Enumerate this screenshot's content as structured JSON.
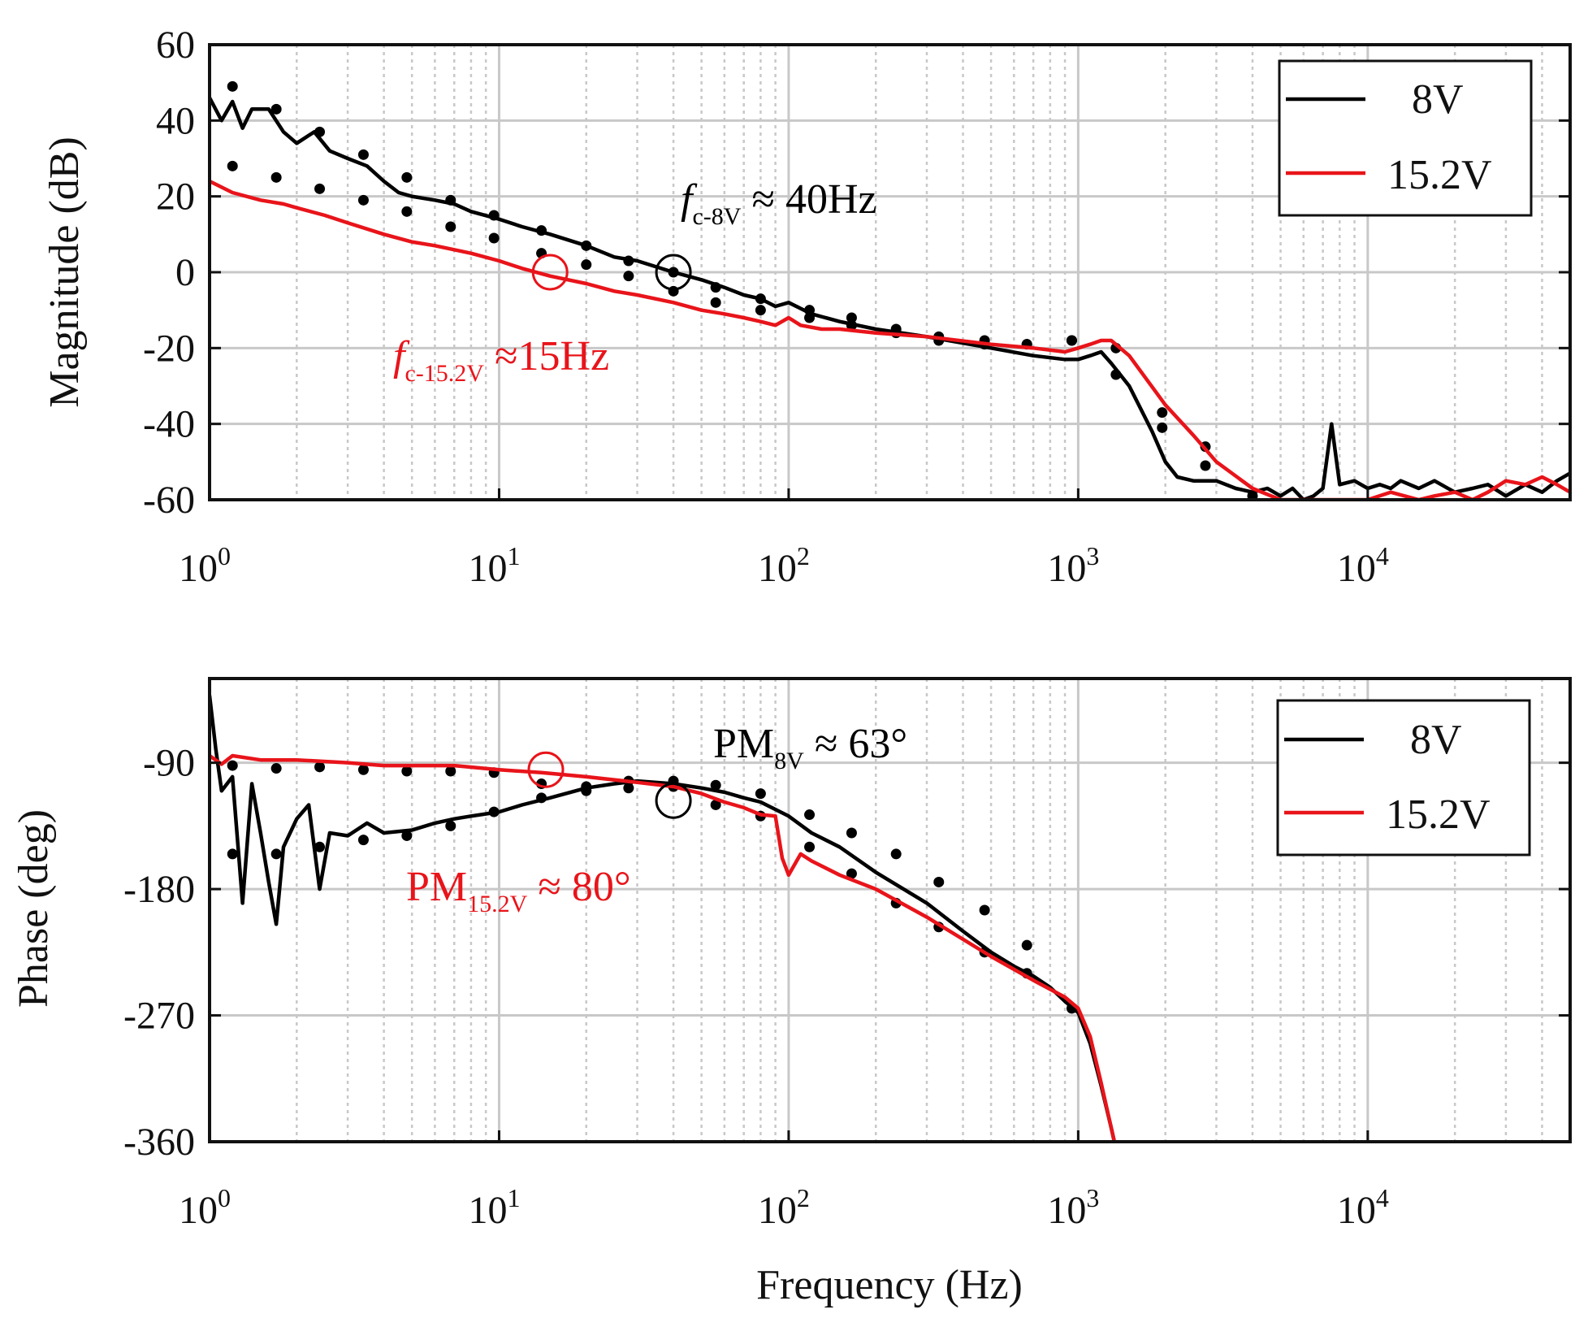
{
  "colors": {
    "v8": "#000000",
    "v15": "#e8141a",
    "grid": "#c8c8c8"
  },
  "chart_data": [
    {
      "type": "line",
      "xscale": "log",
      "xlim": [
        1,
        50000
      ],
      "ylim": [
        -60,
        60
      ],
      "ylabel": "Magnitude (dB)",
      "xlabel": "",
      "yticks": [
        "60",
        "40",
        "20",
        "0",
        "-20",
        "-40",
        "-60"
      ],
      "ytick_values": [
        60,
        40,
        20,
        0,
        -20,
        -40,
        -60
      ],
      "xticks": [
        {
          "value": 1,
          "base": "10",
          "exp": "0"
        },
        {
          "value": 10,
          "base": "10",
          "exp": "1"
        },
        {
          "value": 100,
          "base": "10",
          "exp": "2"
        },
        {
          "value": 1000,
          "base": "10",
          "exp": "3"
        },
        {
          "value": 10000,
          "base": "10",
          "exp": "4"
        }
      ],
      "legend": {
        "placement": "top-right",
        "entries": [
          "8V",
          "15.2V"
        ]
      },
      "series": [
        {
          "name": "8V",
          "color": "#000000",
          "x": [
            1,
            1.1,
            1.2,
            1.3,
            1.4,
            1.6,
            1.8,
            2,
            2.3,
            2.6,
            3,
            3.5,
            4,
            4.5,
            5,
            6,
            7,
            8,
            10,
            12,
            15,
            20,
            25,
            30,
            40,
            50,
            60,
            70,
            80,
            90,
            100,
            120,
            150,
            200,
            300,
            500,
            700,
            900,
            1000,
            1100,
            1200,
            1300,
            1500,
            1800,
            2000,
            2200,
            2500,
            3000,
            3500,
            4000,
            4500,
            5000,
            5500,
            6000,
            6500,
            7000,
            7500,
            8000,
            9000,
            10000,
            11000,
            12000,
            13000,
            15000,
            17000,
            20000,
            23000,
            26000,
            30000,
            35000,
            40000,
            45000,
            50000
          ],
          "y": [
            46,
            40,
            45,
            38,
            43,
            43,
            37,
            34,
            37,
            32,
            30,
            28,
            24,
            21,
            20,
            19,
            18,
            16,
            14,
            12,
            10,
            7,
            4,
            3,
            0,
            -2,
            -4,
            -6,
            -7,
            -9,
            -8,
            -11,
            -13,
            -15,
            -17,
            -20,
            -22,
            -23,
            -23,
            -22,
            -21,
            -24,
            -30,
            -42,
            -50,
            -54,
            -55,
            -55,
            -57,
            -58,
            -57,
            -59,
            -57,
            -60,
            -59,
            -57,
            -40,
            -56,
            -55,
            -57,
            -56,
            -57,
            -55,
            -57,
            -55,
            -58,
            -57,
            -56,
            -59,
            -56,
            -58,
            -55,
            -53
          ]
        },
        {
          "name": "15.2V",
          "color": "#e8141a",
          "x": [
            1,
            1.2,
            1.5,
            1.8,
            2,
            2.5,
            3,
            4,
            5,
            6,
            8,
            10,
            12,
            15,
            20,
            25,
            30,
            40,
            50,
            60,
            70,
            80,
            90,
            100,
            110,
            130,
            150,
            200,
            300,
            500,
            700,
            900,
            1000,
            1100,
            1200,
            1300,
            1500,
            2000,
            2500,
            3000,
            4000,
            5000,
            10000,
            12000,
            15000,
            17000,
            20000,
            23000,
            26000,
            30000,
            35000,
            40000,
            45000,
            50000
          ],
          "y": [
            24,
            21,
            19,
            18,
            17,
            15,
            13,
            10,
            8,
            7,
            5,
            3,
            1,
            -1,
            -3,
            -5,
            -6,
            -8,
            -10,
            -11,
            -12,
            -13,
            -14,
            -12,
            -14,
            -15,
            -15,
            -16,
            -17,
            -19,
            -20,
            -21,
            -20,
            -19,
            -18,
            -18,
            -22,
            -35,
            -43,
            -50,
            -57,
            -60,
            -60,
            -58,
            -60,
            -59,
            -58,
            -60,
            -58,
            -55,
            -56,
            -54,
            -56,
            -58
          ]
        },
        {
          "name": "8V markers",
          "style": "dots",
          "color": "#000000",
          "x": [
            1.2,
            1.7,
            2.4,
            3.4,
            4.8,
            6.8,
            9.6,
            14,
            20,
            28,
            40,
            56,
            80,
            118,
            165,
            235,
            330,
            475,
            665,
            950,
            1350,
            1950,
            2750
          ],
          "y": [
            49,
            43,
            37,
            31,
            25,
            19,
            15,
            11,
            7,
            3,
            0,
            -4,
            -7,
            -10,
            -12,
            -15,
            -17,
            -19,
            -19,
            -18,
            -27,
            -37,
            -46
          ]
        },
        {
          "name": "15.2V markers",
          "style": "dots",
          "color": "#000000",
          "x": [
            1.2,
            1.7,
            2.4,
            3.4,
            4.8,
            6.8,
            9.6,
            14,
            20,
            28,
            40,
            56,
            80,
            118,
            165,
            235,
            330,
            475,
            665,
            950,
            1350,
            1950,
            2750,
            4000
          ],
          "y": [
            28,
            25,
            22,
            19,
            16,
            12,
            9,
            5,
            2,
            -1,
            -5,
            -8,
            -10,
            -12,
            -14,
            -16,
            -18,
            -18,
            -19,
            -18,
            -20,
            -41,
            -51,
            -59
          ]
        }
      ],
      "annotations": [
        {
          "id": "fc8",
          "main": "f",
          "sub": "c-8V",
          "tail": " ≈ 40Hz",
          "color": "#000000",
          "marker_x": 40,
          "marker_y": 0
        },
        {
          "id": "fc15",
          "main": "f",
          "sub": "c-15.2V",
          "tail": " ≈15Hz",
          "color": "#e8141a",
          "marker_x": 15,
          "marker_y": 0
        }
      ]
    },
    {
      "type": "line",
      "xscale": "log",
      "xlim": [
        1,
        50000
      ],
      "ylim": [
        -360,
        -30
      ],
      "ylabel": "Phase (deg)",
      "xlabel": "Frequency (Hz)",
      "yticks": [
        "-90",
        "-180",
        "-270",
        "-360"
      ],
      "ytick_values": [
        -90,
        -180,
        -270,
        -360
      ],
      "xticks": [
        {
          "value": 1,
          "base": "10",
          "exp": "0"
        },
        {
          "value": 10,
          "base": "10",
          "exp": "1"
        },
        {
          "value": 100,
          "base": "10",
          "exp": "2"
        },
        {
          "value": 1000,
          "base": "10",
          "exp": "3"
        },
        {
          "value": 10000,
          "base": "10",
          "exp": "4"
        }
      ],
      "legend": {
        "placement": "top-right",
        "entries": [
          "8V",
          "15.2V"
        ]
      },
      "series": [
        {
          "name": "8V",
          "color": "#000000",
          "x": [
            1,
            1.05,
            1.1,
            1.2,
            1.3,
            1.4,
            1.5,
            1.6,
            1.7,
            1.8,
            2,
            2.2,
            2.4,
            2.6,
            3,
            3.5,
            4,
            5,
            6,
            7,
            8,
            10,
            12,
            15,
            20,
            25,
            30,
            40,
            50,
            60,
            70,
            80,
            100,
            120,
            150,
            200,
            300,
            400,
            500,
            600,
            700,
            800,
            900,
            1000,
            1100,
            1200,
            1300,
            1350
          ],
          "y": [
            -42,
            -80,
            -110,
            -100,
            -190,
            -105,
            -140,
            -175,
            -205,
            -150,
            -130,
            -120,
            -180,
            -140,
            -142,
            -133,
            -140,
            -138,
            -133,
            -130,
            -128,
            -125,
            -120,
            -115,
            -108,
            -105,
            -103,
            -105,
            -108,
            -111,
            -115,
            -118,
            -128,
            -140,
            -150,
            -168,
            -190,
            -210,
            -225,
            -235,
            -242,
            -250,
            -260,
            -268,
            -290,
            -320,
            -350,
            -365
          ]
        },
        {
          "name": "15.2V",
          "color": "#e8141a",
          "x": [
            1,
            1.1,
            1.2,
            1.5,
            2,
            3,
            4,
            5,
            7,
            10,
            14,
            20,
            30,
            40,
            50,
            60,
            70,
            80,
            90,
            95,
            100,
            110,
            120,
            150,
            200,
            300,
            500,
            700,
            900,
            1000,
            1100,
            1200,
            1300,
            1350
          ],
          "y": [
            -85,
            -91,
            -85,
            -88,
            -88,
            -90,
            -92,
            -92,
            -92,
            -95,
            -97,
            -100,
            -104,
            -107,
            -112,
            -118,
            -122,
            -127,
            -128,
            -158,
            -170,
            -155,
            -160,
            -170,
            -180,
            -200,
            -228,
            -245,
            -257,
            -265,
            -285,
            -318,
            -350,
            -365
          ]
        },
        {
          "name": "8V markers",
          "style": "dots",
          "color": "#000000",
          "x": [
            1.2,
            1.7,
            2.4,
            3.4,
            4.8,
            6.8,
            9.6,
            14,
            20,
            28,
            40,
            56,
            80,
            118,
            165,
            235,
            330,
            475,
            665,
            950
          ],
          "y": [
            -155,
            -155,
            -150,
            -145,
            -142,
            -135,
            -125,
            -115,
            -107,
            -103,
            -103,
            -106,
            -112,
            -127,
            -140,
            -155,
            -175,
            -195,
            -220,
            -265
          ]
        },
        {
          "name": "15.2V markers",
          "style": "dots",
          "color": "#000000",
          "x": [
            1.2,
            1.7,
            2.4,
            3.4,
            4.8,
            6.8,
            9.6,
            14,
            20,
            28,
            40,
            56,
            80,
            118,
            165,
            235,
            330,
            475,
            665
          ],
          "y": [
            -92,
            -94,
            -93,
            -95,
            -96,
            -96,
            -97,
            -105,
            -110,
            -108,
            -107,
            -120,
            -128,
            -150,
            -169,
            -190,
            -207,
            -225,
            -240
          ]
        }
      ],
      "annotations": [
        {
          "id": "pm8",
          "main": "PM",
          "sub": "8V",
          "tail": " ≈ 63°",
          "color": "#000000",
          "marker_x": 40,
          "marker_y": -117
        },
        {
          "id": "pm15",
          "main": "PM",
          "sub": "15.2V",
          "tail": " ≈ 80°",
          "color": "#e8141a",
          "marker_x": 14.5,
          "marker_y": -95
        }
      ]
    }
  ]
}
